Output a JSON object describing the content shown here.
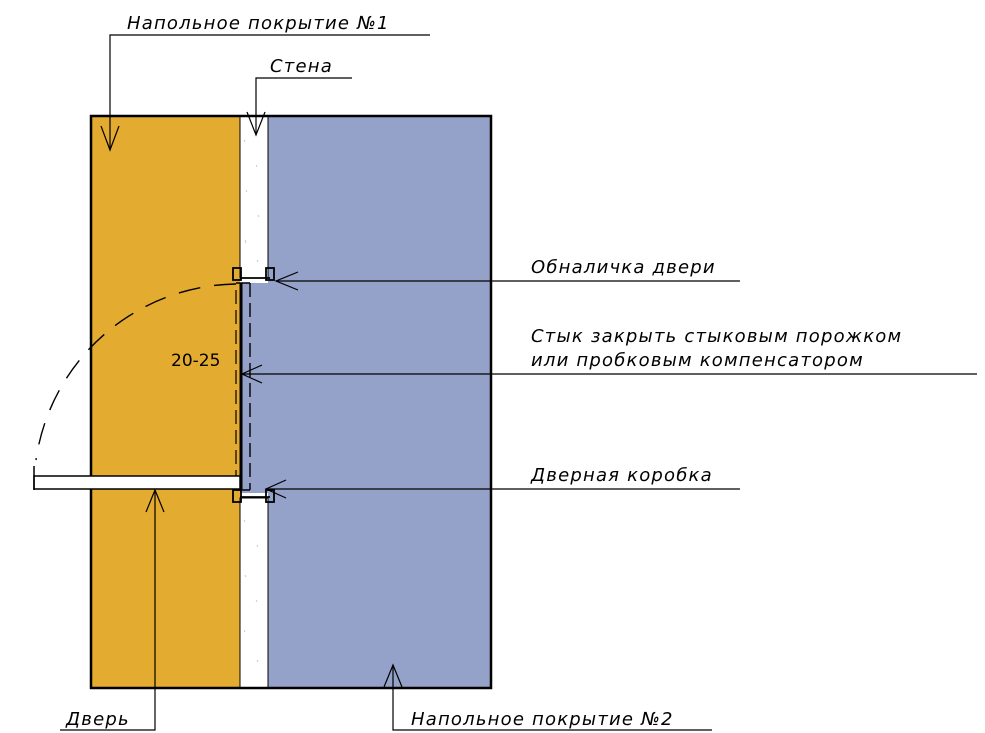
{
  "colors": {
    "floor1": "#e3ab2f",
    "floor2": "#94a1c9",
    "wall": "#ffffff",
    "outline": "#000000"
  },
  "labels": {
    "floor1": "Напольное покрытие №1",
    "wall": "Стена",
    "casing": "Обналичка двери",
    "joint_line1": "Стык закрыть стыковым порожком",
    "joint_line2": "или пробковым компенсатором",
    "door_frame": "Дверная коробка",
    "door": "Дверь",
    "floor2": "Напольное покрытие №2"
  },
  "dimension": "20-25"
}
